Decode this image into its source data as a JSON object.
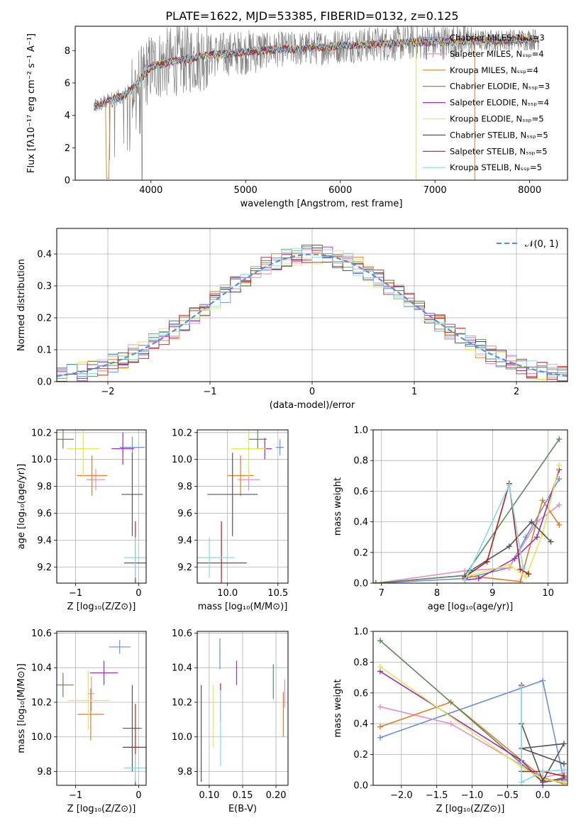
{
  "figure": {
    "title": "PLATE=1622, MJD=53385, FIBERID=0132, z=0.125"
  },
  "series_colors": [
    "#6a8fdd",
    "#e58fc4",
    "#e07b25",
    "#5d8a5e",
    "#9a2fb0",
    "#dfe855",
    "#555555",
    "#b01f1f",
    "#86d9e0"
  ],
  "chart_data": [
    {
      "id": "spectrum",
      "type": "line",
      "xlabel": "wavelength [Angstrom, rest frame]",
      "ylabel": "Flux [fλ10⁻¹⁷ erg cm⁻² s⁻¹ A⁻¹]",
      "xlim": [
        3200,
        8400
      ],
      "ylim": [
        0,
        9.5
      ],
      "xticks": [
        4000,
        5000,
        6000,
        7000,
        8000
      ],
      "yticks": [
        0,
        2,
        4,
        6,
        8
      ],
      "grid": false,
      "legend": "top-right",
      "data_color": "#808080",
      "continuum": {
        "x": [
          3400,
          3550,
          3700,
          3800,
          3900,
          4000,
          4200,
          4400,
          4600,
          4800,
          5000,
          5200,
          5400,
          5600,
          5800,
          6000,
          6200,
          6400,
          6600,
          6800,
          7000,
          7200,
          7400,
          7600,
          7800,
          8000,
          8100
        ],
        "y": [
          4.5,
          4.9,
          5.2,
          5.6,
          6.3,
          7.0,
          7.3,
          7.5,
          7.7,
          7.8,
          7.9,
          8.0,
          8.1,
          8.1,
          8.2,
          8.3,
          8.35,
          8.4,
          8.45,
          8.5,
          8.5,
          8.55,
          8.6,
          8.6,
          8.65,
          8.7,
          8.7
        ]
      },
      "series": [
        {
          "name": "Chabrier MILES, Nₛₛₚ=3"
        },
        {
          "name": "Salpeter MILES, Nₛₛₚ=4"
        },
        {
          "name": "Kroupa MILES, Nₛₛₚ=4"
        },
        {
          "name": "Chabrier ELODIE, Nₛₛₚ=3"
        },
        {
          "name": "Salpeter ELODIE, Nₛₛₚ=4"
        },
        {
          "name": "Kroupa ELODIE, Nₛₛₚ=5"
        },
        {
          "name": "Chabrier STELIB, Nₛₛₚ=5"
        },
        {
          "name": "Salpeter STELIB, Nₛₛₚ=5"
        },
        {
          "name": "Kroupa STELIB, Nₛₛₚ=5"
        }
      ]
    },
    {
      "id": "residuals",
      "type": "area",
      "xlabel": "(data-model)/error",
      "ylabel": "Normed distribution",
      "xlim": [
        -2.5,
        2.5
      ],
      "ylim": [
        0,
        0.48
      ],
      "xticks": [
        -2,
        -1,
        0,
        1,
        2
      ],
      "xticklabels": [
        "−2",
        "−1",
        "0",
        "1",
        "2"
      ],
      "yticks": [
        0.0,
        0.1,
        0.2,
        0.3,
        0.4
      ],
      "yticklabels": [
        "0.0",
        "0.1",
        "0.2",
        "0.3",
        "0.4"
      ],
      "grid": true,
      "legend": "top-right",
      "gaussian_label": "𝒩(0, 1)",
      "gaussian_color": "#5b8dd9"
    },
    {
      "id": "age_vs_Z",
      "type": "scatter",
      "xlabel": "Z [log₁₀(Z/Z⊙)]",
      "ylabel": "age  [log₁₀(age/yr)]",
      "xlim": [
        -1.3,
        0.12
      ],
      "ylim": [
        9.08,
        10.22
      ],
      "xticks": [
        -1,
        0
      ],
      "xticklabels": [
        "−1",
        "0"
      ],
      "yticks": [
        9.2,
        9.4,
        9.6,
        9.8,
        10.0,
        10.2
      ],
      "yticklabels": [
        "9.2",
        "9.4",
        "9.6",
        "9.8",
        "10.0",
        "10.2"
      ],
      "grid": true,
      "points": [
        {
          "x": -0.1,
          "y": 10.09,
          "ex": 0.2,
          "ey": 0.08,
          "c": 0
        },
        {
          "x": -0.68,
          "y": 9.85,
          "ex": 0.15,
          "ey": 0.08,
          "c": 1
        },
        {
          "x": -0.74,
          "y": 9.88,
          "ex": 0.24,
          "ey": 0.15,
          "c": 2
        },
        {
          "x": -1.2,
          "y": 10.15,
          "ex": 0.17,
          "ey": 0.07,
          "c": 3
        },
        {
          "x": -0.25,
          "y": 10.08,
          "ex": 0.18,
          "ey": 0.12,
          "c": 4
        },
        {
          "x": -0.88,
          "y": 10.08,
          "ex": 0.26,
          "ey": 0.21,
          "c": 5
        },
        {
          "x": -0.1,
          "y": 9.74,
          "ex": 0.17,
          "ey": 0.31,
          "c": 6
        },
        {
          "x": -0.05,
          "y": 9.23,
          "ex": 0.18,
          "ey": 0.31,
          "c": 7
        },
        {
          "x": -0.05,
          "y": 9.27,
          "ex": 0.18,
          "ey": 0.15,
          "c": 8
        }
      ]
    },
    {
      "id": "age_vs_mass",
      "type": "scatter",
      "xlabel": "mass [log₁₀(M/M⊙)]",
      "ylabel": "",
      "xlim": [
        9.7,
        10.6
      ],
      "ylim": [
        9.08,
        10.22
      ],
      "xticks": [
        10.0,
        10.5
      ],
      "xticklabels": [
        "10.0",
        "10.5"
      ],
      "yticks": [
        9.2,
        9.4,
        9.6,
        9.8,
        10.0,
        10.2
      ],
      "yticklabels": [
        "9.2",
        "9.4",
        "9.6",
        "9.8",
        "10.0",
        "10.2"
      ],
      "grid": true,
      "points": [
        {
          "x": 10.52,
          "y": 10.09,
          "ex": 0.04,
          "ey": 0.06,
          "c": 0
        },
        {
          "x": 10.21,
          "y": 9.85,
          "ex": 0.11,
          "ey": 0.08,
          "c": 1
        },
        {
          "x": 10.13,
          "y": 9.88,
          "ex": 0.13,
          "ey": 0.15,
          "c": 2
        },
        {
          "x": 10.3,
          "y": 10.15,
          "ex": 0.09,
          "ey": 0.07,
          "c": 3
        },
        {
          "x": 10.37,
          "y": 10.08,
          "ex": 0.07,
          "ey": 0.08,
          "c": 4
        },
        {
          "x": 10.21,
          "y": 10.08,
          "ex": 0.17,
          "ey": 0.21,
          "c": 5
        },
        {
          "x": 10.05,
          "y": 9.74,
          "ex": 0.25,
          "ey": 0.31,
          "c": 6
        },
        {
          "x": 9.94,
          "y": 9.23,
          "ex": 0.25,
          "ey": 0.31,
          "c": 7
        },
        {
          "x": 9.82,
          "y": 9.27,
          "ex": 0.25,
          "ey": 0.15,
          "c": 8
        }
      ]
    },
    {
      "id": "weight_vs_age",
      "type": "line",
      "xlabel": "age  [log₁₀(age/yr)]",
      "ylabel": "mass weight",
      "xlim": [
        6.85,
        10.35
      ],
      "ylim": [
        0,
        1.0
      ],
      "xticks": [
        7,
        8,
        9,
        10
      ],
      "xticklabels": [
        "7",
        "8",
        "9",
        "10"
      ],
      "yticks": [
        0.0,
        0.2,
        0.4,
        0.6,
        0.8,
        1.0
      ],
      "yticklabels": [
        "0.0",
        "0.2",
        "0.4",
        "0.6",
        "0.8",
        "1.0"
      ],
      "grid": true,
      "series": [
        {
          "c": 0,
          "x": [
            6.9,
            8.5,
            9.3,
            9.6,
            10.2
          ],
          "y": [
            0.0,
            0.03,
            0.1,
            0.3,
            0.68
          ]
        },
        {
          "c": 1,
          "x": [
            6.9,
            8.5,
            9.3,
            9.8,
            10.2
          ],
          "y": [
            0.0,
            0.08,
            0.1,
            0.4,
            0.51
          ]
        },
        {
          "c": 2,
          "x": [
            6.9,
            8.5,
            9.5,
            9.9,
            10.2
          ],
          "y": [
            0.0,
            0.05,
            0.01,
            0.54,
            0.38
          ]
        },
        {
          "c": 3,
          "x": [
            6.9,
            8.5,
            10.2
          ],
          "y": [
            0.0,
            0.05,
            0.94
          ]
        },
        {
          "c": 4,
          "x": [
            8.5,
            8.75,
            9.4,
            9.8,
            10.2
          ],
          "y": [
            0.02,
            0.03,
            0.16,
            0.3,
            0.74
          ]
        },
        {
          "c": 5,
          "x": [
            8.5,
            9.3,
            9.6,
            9.9,
            10.2
          ],
          "y": [
            0.04,
            0.12,
            0.04,
            0.32,
            0.77
          ]
        },
        {
          "c": 6,
          "x": [
            8.5,
            8.6,
            9.3,
            9.7,
            10.05
          ],
          "y": [
            0.03,
            0.08,
            0.24,
            0.4,
            0.27
          ]
        },
        {
          "c": 7,
          "x": [
            8.5,
            8.9,
            9.3,
            9.5,
            9.65
          ],
          "y": [
            0.04,
            0.14,
            0.65,
            0.09,
            0.06
          ]
        },
        {
          "c": 8,
          "x": [
            8.5,
            8.6,
            9.3,
            9.55
          ],
          "y": [
            0.02,
            0.09,
            0.64,
            0.1
          ]
        }
      ]
    },
    {
      "id": "mass_vs_Z",
      "type": "scatter",
      "xlabel": "Z [log₁₀(Z/Z⊙)]",
      "ylabel": "mass [log₁₀(M/M⊙)]",
      "xlim": [
        -1.3,
        0.12
      ],
      "ylim": [
        9.72,
        10.61
      ],
      "xticks": [
        -1,
        0
      ],
      "xticklabels": [
        "−1",
        "0"
      ],
      "yticks": [
        9.8,
        10.0,
        10.2,
        10.4,
        10.6
      ],
      "yticklabels": [
        "9.8",
        "10.0",
        "10.2",
        "10.4",
        "10.6"
      ],
      "grid": true,
      "points": [
        {
          "x": -0.3,
          "y": 10.52,
          "ex": 0.17,
          "ey": 0.04,
          "c": 0
        },
        {
          "x": -0.75,
          "y": 10.25,
          "ex": 0.05,
          "ey": 0.1,
          "c": 1
        },
        {
          "x": -0.76,
          "y": 10.13,
          "ex": 0.21,
          "ey": 0.15,
          "c": 2
        },
        {
          "x": -1.2,
          "y": 10.3,
          "ex": 0.17,
          "ey": 0.07,
          "c": 3
        },
        {
          "x": -0.55,
          "y": 10.37,
          "ex": 0.22,
          "ey": 0.07,
          "c": 4
        },
        {
          "x": -0.8,
          "y": 10.21,
          "ex": 0.33,
          "ey": 0.17,
          "c": 5
        },
        {
          "x": -0.1,
          "y": 10.05,
          "ex": 0.15,
          "ey": 0.25,
          "c": 6
        },
        {
          "x": -0.05,
          "y": 9.94,
          "ex": 0.2,
          "ey": 0.25,
          "c": 7
        },
        {
          "x": -0.05,
          "y": 9.82,
          "ex": 0.18,
          "ey": 0.08,
          "c": 8
        }
      ]
    },
    {
      "id": "mass_vs_EBV",
      "type": "scatter",
      "xlabel": "E(B-V)",
      "ylabel": "",
      "xlim": [
        0.082,
        0.218
      ],
      "ylim": [
        9.72,
        10.61
      ],
      "xticks": [
        0.1,
        0.15,
        0.2
      ],
      "xticklabels": [
        "0.10",
        "0.15",
        "0.20"
      ],
      "yticks": [
        9.8,
        10.0,
        10.2,
        10.4,
        10.6
      ],
      "yticklabels": [
        "9.8",
        "10.0",
        "10.2",
        "10.4",
        "10.6"
      ],
      "grid": true,
      "points": [
        {
          "x": 0.116,
          "y": 10.48,
          "ex": 0,
          "ey": 0.09,
          "c": 0
        },
        {
          "x": 0.213,
          "y": 10.25,
          "ex": 0,
          "ey": 0.08,
          "c": 1
        },
        {
          "x": 0.211,
          "y": 10.13,
          "ex": 0,
          "ey": 0.13,
          "c": 2
        },
        {
          "x": 0.196,
          "y": 10.32,
          "ex": 0,
          "ey": 0.1,
          "c": 3
        },
        {
          "x": 0.141,
          "y": 10.37,
          "ex": 0,
          "ey": 0.07,
          "c": 4
        },
        {
          "x": 0.106,
          "y": 10.12,
          "ex": 0,
          "ey": 0.18,
          "c": 5
        },
        {
          "x": 0.088,
          "y": 10.02,
          "ex": 0,
          "ey": 0.28,
          "c": 6
        },
        {
          "x": 0.117,
          "y": 10.2,
          "ex": 0,
          "ey": 0.11,
          "c": 7
        },
        {
          "x": 0.117,
          "y": 10.05,
          "ex": 0,
          "ey": 0.22,
          "c": 8
        }
      ]
    },
    {
      "id": "weight_vs_Z",
      "type": "line",
      "xlabel": "Z [log₁₀(Z/Z⊙)]",
      "ylabel": "mass weight",
      "xlim": [
        -2.4,
        0.35
      ],
      "ylim": [
        0,
        1.0
      ],
      "xticks": [
        -2.0,
        -1.5,
        -1.0,
        -0.5,
        0.0
      ],
      "xticklabels": [
        "−2.0",
        "−1.5",
        "−1.0",
        "−0.5",
        "0.0"
      ],
      "yticks": [
        0.0,
        0.2,
        0.4,
        0.6,
        0.8,
        1.0
      ],
      "yticklabels": [
        "0.0",
        "0.2",
        "0.4",
        "0.6",
        "0.8",
        "1.0"
      ],
      "grid": true,
      "series": [
        {
          "c": 0,
          "x": [
            -2.3,
            0.0,
            0.3
          ],
          "y": [
            0.31,
            0.68,
            0.03
          ]
        },
        {
          "c": 1,
          "x": [
            -2.3,
            -1.3,
            0.0,
            0.3
          ],
          "y": [
            0.51,
            0.4,
            0.05,
            0.08
          ]
        },
        {
          "c": 2,
          "x": [
            -2.3,
            -1.3,
            0.0,
            0.3
          ],
          "y": [
            0.38,
            0.54,
            0.05,
            0.01
          ]
        },
        {
          "c": 3,
          "x": [
            -2.3,
            0.0,
            0.3
          ],
          "y": [
            0.94,
            0.02,
            0.05
          ]
        },
        {
          "c": 4,
          "x": [
            -2.3,
            -0.3,
            0.0,
            0.3
          ],
          "y": [
            0.74,
            0.16,
            0.02,
            0.04
          ]
        },
        {
          "c": 5,
          "x": [
            -2.3,
            -0.3,
            0.0,
            0.3
          ],
          "y": [
            0.77,
            0.12,
            0.04,
            0.02
          ]
        },
        {
          "c": 6,
          "x": [
            -0.3,
            0.0,
            0.3,
            -0.3,
            0.3
          ],
          "y": [
            0.4,
            0.03,
            0.27,
            0.24,
            0.14
          ]
        },
        {
          "c": 7,
          "x": [
            -0.3,
            -0.3,
            0.0,
            0.3
          ],
          "y": [
            0.65,
            0.09,
            0.09,
            0.06
          ]
        },
        {
          "c": 8,
          "x": [
            -0.3,
            -0.3,
            0.0,
            0.3
          ],
          "y": [
            0.64,
            0.02,
            0.09,
            0.1
          ]
        }
      ]
    }
  ]
}
